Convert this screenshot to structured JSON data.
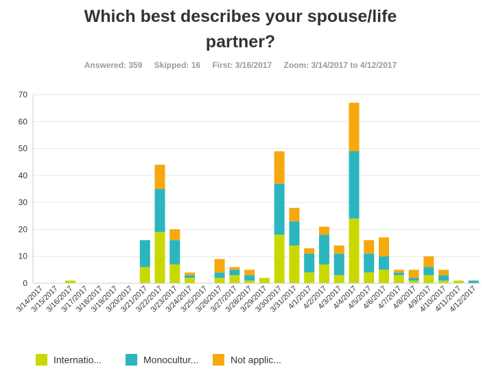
{
  "header": {
    "title_line1": "Which best describes your spouse/life",
    "title_line2": "partner?"
  },
  "meta": {
    "answered": "Answered: 359",
    "skipped": "Skipped: 16",
    "first": "First: 3/16/2017",
    "zoom": "Zoom: 3/14/2017 to 4/12/2017"
  },
  "chart_data": {
    "type": "bar",
    "stacked": true,
    "categories": [
      "3/14/2017",
      "3/15/2017",
      "3/16/2017",
      "3/17/2017",
      "3/18/2017",
      "3/19/2017",
      "3/20/2017",
      "3/21/2017",
      "3/22/2017",
      "3/23/2017",
      "3/24/2017",
      "3/25/2017",
      "3/26/2017",
      "3/27/2017",
      "3/28/2017",
      "3/29/2017",
      "3/30/2017",
      "3/31/2017",
      "4/1/2017",
      "4/2/2017",
      "4/3/2017",
      "4/4/2017",
      "4/5/2017",
      "4/6/2017",
      "4/7/2017",
      "4/8/2017",
      "4/9/2017",
      "4/10/2017",
      "4/11/2017",
      "4/12/2017"
    ],
    "series": [
      {
        "name": "Internatio...",
        "color": "#c9d900",
        "values": [
          0,
          0,
          1,
          0,
          0,
          0,
          0,
          6,
          19,
          7,
          2,
          0,
          2,
          3,
          1,
          2,
          18,
          14,
          4,
          7,
          3,
          24,
          4,
          5,
          3,
          1,
          3,
          1,
          1,
          0
        ]
      },
      {
        "name": "Monocultur...",
        "color": "#2bb5bf",
        "values": [
          0,
          0,
          0,
          0,
          0,
          0,
          0,
          10,
          16,
          9,
          1,
          0,
          2,
          2,
          2,
          0,
          19,
          9,
          7,
          11,
          8,
          25,
          7,
          5,
          1,
          1,
          3,
          2,
          0,
          1
        ]
      },
      {
        "name": "Not applic...",
        "color": "#f7a80c",
        "values": [
          0,
          0,
          0,
          0,
          0,
          0,
          0,
          0,
          9,
          4,
          1,
          0,
          5,
          1,
          2,
          0,
          12,
          5,
          2,
          3,
          3,
          18,
          5,
          7,
          1,
          3,
          4,
          2,
          0,
          0
        ]
      }
    ],
    "ylim": [
      0,
      70
    ],
    "yticks": [
      0,
      10,
      20,
      30,
      40,
      50,
      60,
      70
    ],
    "grid": true,
    "legend_position": "bottom-left"
  },
  "legend": {
    "items": [
      {
        "label": "Internatio...",
        "color": "#c9d900"
      },
      {
        "label": "Monocultur...",
        "color": "#2bb5bf"
      },
      {
        "label": "Not applic...",
        "color": "#f7a80c"
      }
    ]
  }
}
